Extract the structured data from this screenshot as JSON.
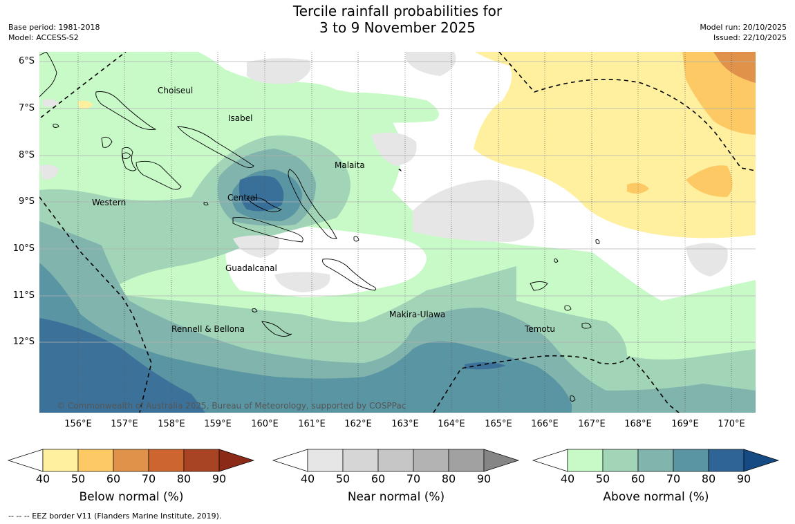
{
  "title": {
    "line1": "Tercile rainfall probabilities for",
    "line2": "3 to 9 November 2025"
  },
  "meta_left": {
    "base_period": "Base period: 1981-2018",
    "model": "Model: ACCESS-S2"
  },
  "meta_right": {
    "model_run": "Model run: 20/10/2025",
    "issued": "Issued: 22/10/2025"
  },
  "map": {
    "lat_labels": [
      "6°S",
      "7°S",
      "8°S",
      "9°S",
      "10°S",
      "11°S",
      "12°S"
    ],
    "lon_labels": [
      "156°E",
      "157°E",
      "158°E",
      "159°E",
      "160°E",
      "161°E",
      "162°E",
      "163°E",
      "164°E",
      "165°E",
      "166°E",
      "167°E",
      "168°E",
      "169°E",
      "170°E"
    ],
    "places": {
      "choiseul": "Choiseul",
      "isabel": "Isabel",
      "malaita": "Malaita",
      "western": "Western",
      "central": "Central",
      "guadalcanal": "Guadalcanal",
      "makira": "Makira-Ulawa",
      "rennell": "Rennell & Bellona",
      "temotu": "Temotu"
    },
    "copyright": "© Commonwealth of Australia 2025, Bureau of Meteorology, supported by COSPPac"
  },
  "colors": {
    "below": [
      "#fff0a0",
      "#fdc965",
      "#e0924a",
      "#cc6530",
      "#a84424",
      "#8c2a18"
    ],
    "near": [
      "#e6e6e6",
      "#d6d6d6",
      "#c6c6c6",
      "#b3b3b3",
      "#a1a1a1",
      "#858585"
    ],
    "above": [
      "#c8fac8",
      "#a2d4b8",
      "#80b4ac",
      "#5a95a3",
      "#2f6496",
      "#154a82"
    ]
  },
  "colorbars": {
    "ticks": [
      "40",
      "50",
      "60",
      "70",
      "80",
      "90"
    ],
    "below_label": "Below normal (%)",
    "near_label": "Near normal (%)",
    "above_label": "Above normal (%)"
  },
  "footer": "--  --  -- EEZ border V11 (Flanders Marine Institute, 2019)."
}
